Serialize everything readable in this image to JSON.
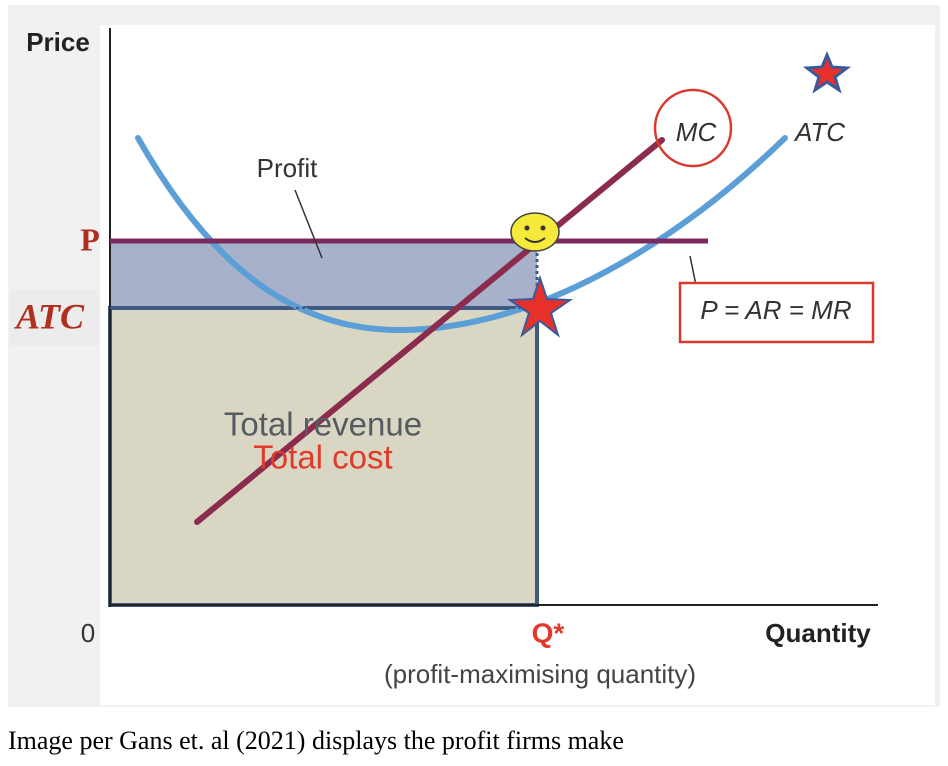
{
  "y_axis_label": "Price",
  "price_label": "P",
  "atc_level_label": "ATC",
  "profit_label": "Profit",
  "mc_label": "MC",
  "atc_curve_label": "ATC",
  "mr_label": "P = AR = MR",
  "revenue_label": "Total revenue",
  "cost_label": "Total cost",
  "origin_label": "0",
  "q_label": "Q*",
  "x_axis_label": "Quantity",
  "q_note": "(profit-maximising quantity)",
  "caption": "Image per Gans et. al (2021) displays the profit firms make"
}
